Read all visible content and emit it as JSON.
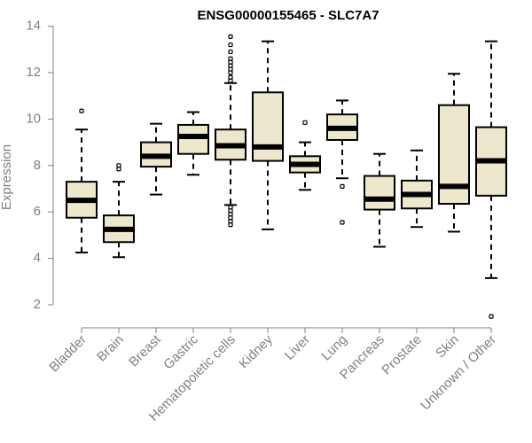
{
  "chart_data": {
    "type": "boxplot",
    "title": "ENSG00000155465 - SLC7A7",
    "xlabel": "",
    "ylabel": "Expression",
    "ylim": [
      1.3,
      14.1
    ],
    "yticks": [
      2,
      4,
      6,
      8,
      10,
      12,
      14
    ],
    "grid": false,
    "box_color": "#EDE7CE",
    "categories": [
      "Bladder",
      "Brain",
      "Breast",
      "Gastric",
      "Hematopoietic cells",
      "Kidney",
      "Liver",
      "Lung",
      "Pancreas",
      "Prostate",
      "Skin",
      "Unknown / Other"
    ],
    "boxes": [
      {
        "min": 4.25,
        "q1": 5.75,
        "median": 6.5,
        "q3": 7.3,
        "max": 9.55,
        "outliers": [
          10.35
        ]
      },
      {
        "min": 4.05,
        "q1": 4.7,
        "median": 5.25,
        "q3": 5.85,
        "max": 7.3,
        "outliers": [
          7.85,
          8.0
        ]
      },
      {
        "min": 6.75,
        "q1": 7.95,
        "median": 8.4,
        "q3": 9.0,
        "max": 9.8,
        "outliers": []
      },
      {
        "min": 7.6,
        "q1": 8.5,
        "median": 9.25,
        "q3": 9.75,
        "max": 10.3,
        "outliers": []
      },
      {
        "min": 6.3,
        "q1": 8.25,
        "median": 8.85,
        "q3": 9.55,
        "max": 11.55,
        "outliers": [
          5.45,
          5.6,
          5.75,
          5.9,
          6.05,
          6.2,
          11.65,
          11.8,
          12.0,
          12.15,
          12.3,
          12.45,
          12.6,
          12.9,
          13.2,
          13.55
        ]
      },
      {
        "min": 5.25,
        "q1": 8.2,
        "median": 8.8,
        "q3": 11.15,
        "max": 13.35,
        "outliers": []
      },
      {
        "min": 6.95,
        "q1": 7.7,
        "median": 8.05,
        "q3": 8.4,
        "max": 9.0,
        "outliers": [
          9.85
        ]
      },
      {
        "min": 7.45,
        "q1": 9.1,
        "median": 9.6,
        "q3": 10.2,
        "max": 10.8,
        "outliers": [
          7.1,
          5.55
        ]
      },
      {
        "min": 4.5,
        "q1": 6.1,
        "median": 6.55,
        "q3": 7.55,
        "max": 8.5,
        "outliers": []
      },
      {
        "min": 5.35,
        "q1": 6.15,
        "median": 6.75,
        "q3": 7.35,
        "max": 8.65,
        "outliers": []
      },
      {
        "min": 5.15,
        "q1": 6.35,
        "median": 7.1,
        "q3": 10.6,
        "max": 11.95,
        "outliers": []
      },
      {
        "min": 3.15,
        "q1": 6.7,
        "median": 8.2,
        "q3": 9.65,
        "max": 13.35,
        "outliers": [
          1.5
        ]
      }
    ]
  }
}
